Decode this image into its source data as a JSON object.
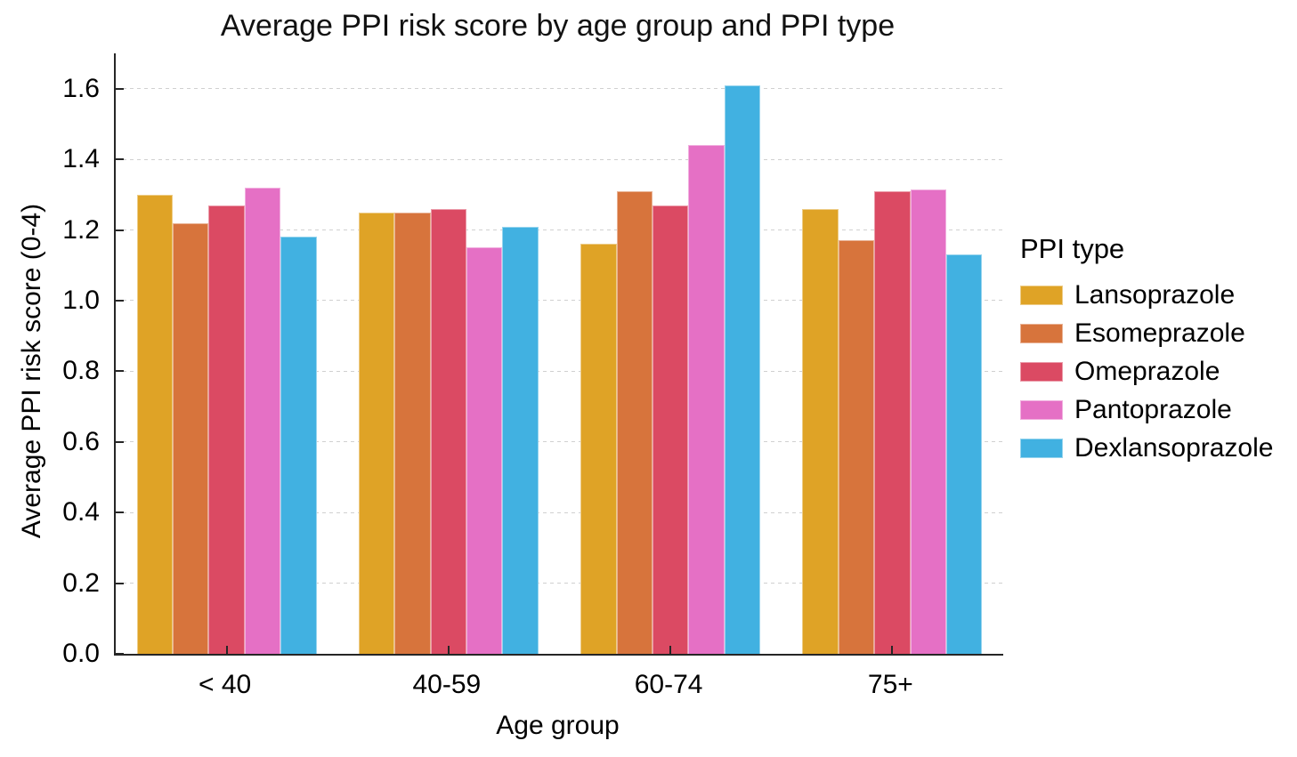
{
  "chart_data": {
    "type": "bar",
    "title": "Average PPI risk score by age group and PPI type",
    "xlabel": "Age group",
    "ylabel": "Average PPI risk score (0-4)",
    "categories": [
      "< 40",
      "40-59",
      "60-74",
      "75+"
    ],
    "series": [
      {
        "name": "Lansoprazole",
        "color": "#DFA326",
        "values": [
          1.3,
          1.25,
          1.16,
          1.26
        ]
      },
      {
        "name": "Esomeprazole",
        "color": "#D7743C",
        "values": [
          1.22,
          1.25,
          1.31,
          1.17
        ]
      },
      {
        "name": "Omeprazole",
        "color": "#DB4A63",
        "values": [
          1.27,
          1.26,
          1.27,
          1.31
        ]
      },
      {
        "name": "Pantoprazole",
        "color": "#E570C5",
        "values": [
          1.32,
          1.15,
          1.44,
          1.315
        ]
      },
      {
        "name": "Dexlansoprazole",
        "color": "#41B1E1",
        "values": [
          1.18,
          1.21,
          1.61,
          1.13
        ]
      }
    ],
    "ylim": [
      0,
      1.7
    ],
    "yticks": [
      0.0,
      0.2,
      0.4,
      0.6,
      0.8,
      1.0,
      1.2,
      1.4,
      1.6
    ],
    "ytick_labels": [
      "0.0",
      "0.2",
      "0.4",
      "0.6",
      "0.8",
      "1.0",
      "1.2",
      "1.4",
      "1.6"
    ],
    "grid": "horizontal-dashed",
    "legend": {
      "title": "PPI type",
      "position": "right"
    }
  }
}
